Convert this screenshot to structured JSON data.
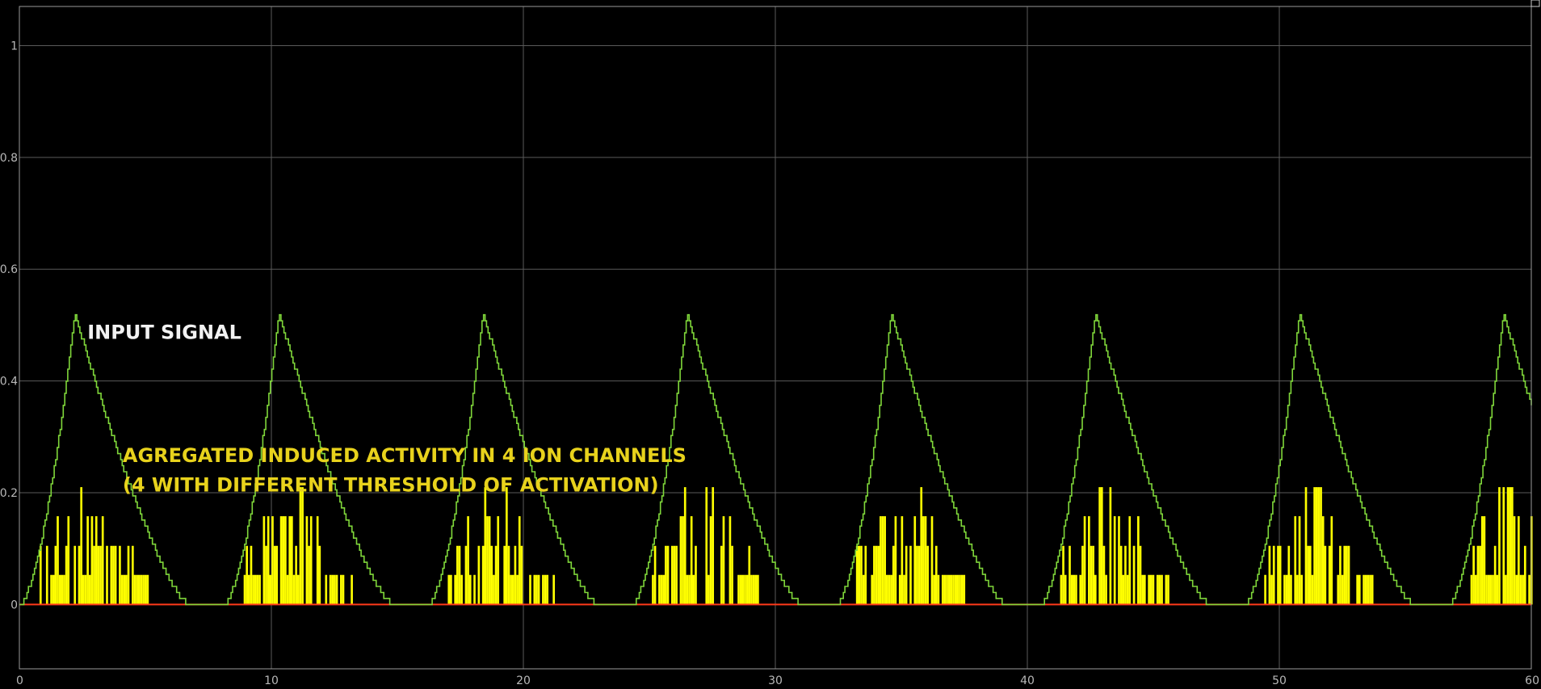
{
  "chart_data": {
    "type": "line",
    "title": "",
    "xlabel": "",
    "ylabel": "",
    "xlim": [
      0,
      60
    ],
    "ylim": [
      -0.115,
      1.07
    ],
    "x_ticks": [
      0,
      10,
      20,
      30,
      40,
      50,
      60
    ],
    "y_ticks": [
      0,
      0.2,
      0.4,
      0.6,
      0.8,
      1
    ],
    "grid": true,
    "colors": {
      "background": "#000000",
      "grid": "#5a5a5a",
      "axes": "#9a9a9a",
      "input_signal": "#7fd63a",
      "aggregated_activity": "#ffff00",
      "baseline": "#ff3a1a"
    },
    "series": [
      {
        "name": "INPUT SIGNAL",
        "style": "staircase line",
        "period": 8.1,
        "pulse_peaks_x": [
          2.2,
          10.3,
          18.4,
          26.5,
          34.6,
          42.7,
          50.8,
          58.9
        ],
        "peak_value": 0.52,
        "rise_start_offset": -2.2,
        "fall_end_offset": 4.5,
        "min_value": 0
      },
      {
        "name": "AGREGATED INDUCED ACTIVITY",
        "style": "bars",
        "levels": [
          0,
          0.053,
          0.105,
          0.158,
          0.21
        ],
        "bursts_start_x": [
          0.8,
          8.9,
          17.0,
          25.1,
          33.2,
          41.3,
          49.4,
          57.5
        ],
        "burst_duration": 4.3
      },
      {
        "name": "baseline",
        "style": "line",
        "value": 0
      }
    ],
    "annotations": [
      {
        "text": "INPUT SIGNAL",
        "x": 2.7,
        "y": 0.475,
        "color": "white"
      },
      {
        "text": "AGREGATED INDUCED ACTIVITY IN 4 ION CHANNELS",
        "x": 4.1,
        "y": 0.255,
        "color": "yellow"
      },
      {
        "text": "(4 WITH DIFFERENT THRESHOLD OF ACTIVATION)",
        "x": 4.1,
        "y": 0.202,
        "color": "yellow"
      }
    ]
  }
}
